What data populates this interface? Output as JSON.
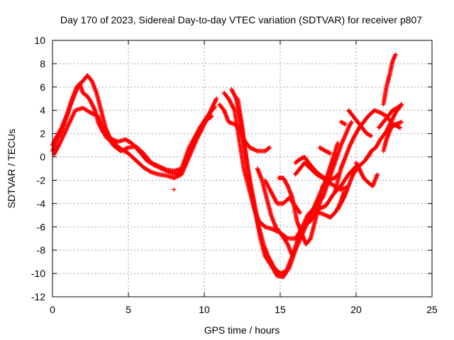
{
  "chart_data": {
    "type": "scatter",
    "title": "Day 170 of 2023, Sidereal Day-to-day VTEC variation (SDTVAR) for receiver p807",
    "xlabel": "GPS time / hours",
    "ylabel": "SDTVAR / TECUs",
    "xlim": [
      0,
      25
    ],
    "ylim": [
      -12,
      10
    ],
    "xticks": [
      "0",
      "5",
      "10",
      "15",
      "20",
      "25"
    ],
    "yticks": [
      "-12",
      "-10",
      "-8",
      "-6",
      "-4",
      "-2",
      "0",
      "2",
      "4",
      "6",
      "8",
      "10"
    ],
    "grid": true,
    "marker": "+",
    "color": "#ff0000",
    "series": [
      {
        "values": [
          [
            0.0,
            0.5
          ],
          [
            0.3,
            1.5
          ],
          [
            0.6,
            2.2
          ],
          [
            0.9,
            3.3
          ],
          [
            1.2,
            4.5
          ],
          [
            1.5,
            5.5
          ],
          [
            1.8,
            6.3
          ],
          [
            2.0,
            5.5
          ],
          [
            2.3,
            5.2
          ],
          [
            2.5,
            4.8
          ],
          [
            2.8,
            4.0
          ],
          [
            3.0,
            3.0
          ],
          [
            3.3,
            2.2
          ],
          [
            3.6,
            1.6
          ],
          [
            4.0,
            1.2
          ],
          [
            4.5,
            0.7
          ],
          [
            5.0,
            0.3
          ],
          [
            5.5,
            -0.3
          ],
          [
            6.0,
            -0.9
          ],
          [
            6.5,
            -1.3
          ],
          [
            7.0,
            -1.5
          ],
          [
            7.5,
            -1.6
          ],
          [
            8.0,
            -1.8
          ],
          [
            8.5,
            -1.5
          ],
          [
            9.0,
            0.0
          ],
          [
            9.5,
            1.5
          ],
          [
            10.0,
            2.8
          ],
          [
            10.5,
            4.2
          ],
          [
            10.8,
            5.0
          ]
        ]
      },
      {
        "values": [
          [
            0.0,
            1.0
          ],
          [
            0.3,
            1.8
          ],
          [
            0.6,
            2.5
          ],
          [
            1.0,
            3.8
          ],
          [
            1.3,
            5.0
          ],
          [
            1.6,
            6.0
          ],
          [
            2.0,
            6.5
          ],
          [
            2.3,
            7.0
          ],
          [
            2.6,
            6.5
          ],
          [
            2.9,
            5.5
          ],
          [
            3.2,
            4.0
          ],
          [
            3.5,
            2.5
          ],
          [
            3.8,
            1.6
          ],
          [
            4.3,
            1.3
          ],
          [
            4.8,
            1.5
          ],
          [
            5.2,
            1.2
          ],
          [
            5.7,
            0.5
          ],
          [
            6.2,
            -0.3
          ],
          [
            6.7,
            -0.7
          ],
          [
            7.2,
            -1.0
          ],
          [
            7.7,
            -1.3
          ],
          [
            8.2,
            -1.5
          ],
          [
            8.7,
            -0.8
          ],
          [
            9.2,
            1.0
          ],
          [
            9.7,
            2.5
          ],
          [
            10.2,
            3.5
          ],
          [
            10.7,
            4.3
          ]
        ]
      },
      {
        "values": [
          [
            0.1,
            0.2
          ],
          [
            0.5,
            1.2
          ],
          [
            1.0,
            2.6
          ],
          [
            1.5,
            4.0
          ],
          [
            2.0,
            4.2
          ],
          [
            2.5,
            3.8
          ],
          [
            3.0,
            3.5
          ],
          [
            3.5,
            2.0
          ],
          [
            4.0,
            1.0
          ],
          [
            4.5,
            0.5
          ],
          [
            5.0,
            0.8
          ],
          [
            5.5,
            0.9
          ],
          [
            6.0,
            0.3
          ],
          [
            6.5,
            -0.5
          ],
          [
            7.0,
            -0.8
          ],
          [
            7.5,
            -1.1
          ],
          [
            8.0,
            -1.2
          ],
          [
            8.5,
            -1.0
          ],
          [
            9.0,
            0.8
          ],
          [
            9.5,
            2.0
          ],
          [
            10.0,
            3.0
          ],
          [
            10.5,
            3.5
          ]
        ]
      },
      {
        "values": [
          [
            8.0,
            -2.8
          ]
        ]
      },
      {
        "values": [
          [
            11.0,
            4.5
          ],
          [
            11.3,
            4.0
          ],
          [
            11.6,
            3.0
          ],
          [
            12.0,
            2.8
          ],
          [
            12.3,
            2.5
          ],
          [
            12.6,
            1.5
          ],
          [
            13.0,
            0.8
          ],
          [
            13.5,
            0.5
          ],
          [
            14.0,
            0.5
          ],
          [
            14.3,
            0.8
          ]
        ]
      },
      {
        "values": [
          [
            11.3,
            5.5
          ],
          [
            11.6,
            5.0
          ],
          [
            12.0,
            4.0
          ],
          [
            12.3,
            1.5
          ],
          [
            12.6,
            -1.0
          ],
          [
            13.0,
            -3.0
          ],
          [
            13.3,
            -4.5
          ],
          [
            13.6,
            -5.5
          ],
          [
            14.0,
            -6.0
          ],
          [
            14.5,
            -6.2
          ],
          [
            15.0,
            -6.5
          ],
          [
            15.5,
            -7.5
          ],
          [
            15.8,
            -8.5
          ]
        ]
      },
      {
        "values": [
          [
            11.8,
            5.8
          ],
          [
            12.1,
            5.0
          ],
          [
            12.4,
            3.0
          ],
          [
            12.7,
            0.5
          ],
          [
            13.0,
            -2.0
          ],
          [
            13.3,
            -4.0
          ],
          [
            13.6,
            -6.0
          ],
          [
            13.9,
            -7.5
          ],
          [
            14.2,
            -8.5
          ],
          [
            14.6,
            -9.5
          ],
          [
            15.0,
            -10.0
          ],
          [
            15.4,
            -9.8
          ],
          [
            15.8,
            -8.5
          ],
          [
            16.3,
            -6.5
          ],
          [
            16.8,
            -5.0
          ],
          [
            17.3,
            -4.3
          ],
          [
            17.8,
            -3.5
          ],
          [
            18.2,
            -2.0
          ],
          [
            18.6,
            -0.5
          ],
          [
            19.0,
            1.0
          ],
          [
            19.5,
            2.5
          ],
          [
            19.7,
            3.0
          ]
        ]
      },
      {
        "values": [
          [
            12.2,
            5.0
          ],
          [
            12.5,
            2.5
          ],
          [
            12.8,
            -0.5
          ],
          [
            13.1,
            -3.0
          ],
          [
            13.4,
            -5.0
          ],
          [
            13.7,
            -7.0
          ],
          [
            14.0,
            -8.5
          ],
          [
            14.4,
            -9.3
          ],
          [
            14.8,
            -10.2
          ],
          [
            15.2,
            -10.3
          ],
          [
            15.6,
            -9.5
          ],
          [
            16.0,
            -8.0
          ],
          [
            16.5,
            -6.5
          ],
          [
            17.0,
            -5.0
          ],
          [
            17.5,
            -3.5
          ],
          [
            18.0,
            -2.0
          ],
          [
            18.5,
            0.0
          ],
          [
            18.8,
            1.2
          ]
        ]
      },
      {
        "values": [
          [
            13.5,
            -1.0
          ],
          [
            13.8,
            -2.0
          ],
          [
            14.1,
            -3.5
          ],
          [
            14.4,
            -5.0
          ],
          [
            14.7,
            -6.0
          ],
          [
            15.0,
            -6.5
          ],
          [
            15.5,
            -7.0
          ],
          [
            16.0,
            -7.0
          ],
          [
            16.5,
            -6.0
          ],
          [
            17.0,
            -5.5
          ],
          [
            17.5,
            -4.5
          ],
          [
            18.0,
            -4.2
          ],
          [
            18.5,
            -3.2
          ],
          [
            19.0,
            -2.5
          ],
          [
            19.5,
            -1.5
          ],
          [
            20.0,
            -0.8
          ]
        ]
      },
      {
        "values": [
          [
            14.0,
            -2.0
          ],
          [
            14.4,
            -3.0
          ],
          [
            14.8,
            -4.0
          ],
          [
            15.2,
            -4.0
          ],
          [
            15.6,
            -3.5
          ],
          [
            16.0,
            -4.2
          ],
          [
            16.3,
            -4.8
          ]
        ]
      },
      {
        "values": [
          [
            14.9,
            -1.8
          ],
          [
            15.2,
            -1.8
          ],
          [
            15.5,
            -2.5
          ],
          [
            15.8,
            -3.5
          ],
          [
            16.1,
            -5.5
          ],
          [
            16.4,
            -6.5
          ],
          [
            16.7,
            -7.5
          ],
          [
            17.0,
            -7.0
          ],
          [
            17.3,
            -5.5
          ],
          [
            17.6,
            -4.0
          ],
          [
            17.8,
            -2.5
          ]
        ]
      },
      {
        "values": [
          [
            16.0,
            -1.5
          ],
          [
            16.3,
            -1.0
          ],
          [
            16.6,
            -0.5
          ],
          [
            17.0,
            -1.0
          ],
          [
            17.4,
            -1.5
          ],
          [
            17.8,
            -1.8
          ],
          [
            18.2,
            -2.2
          ],
          [
            18.6,
            -2.5
          ],
          [
            19.0,
            -2.8
          ],
          [
            19.4,
            -2.6
          ]
        ]
      },
      {
        "values": [
          [
            16.0,
            -0.5
          ],
          [
            16.3,
            -0.2
          ],
          [
            16.6,
            0.0
          ],
          [
            17.0,
            -0.7
          ],
          [
            17.4,
            -1.3
          ],
          [
            17.8,
            -1.7
          ],
          [
            18.2,
            -2.0
          ],
          [
            18.6,
            -1.8
          ],
          [
            18.8,
            -1.5
          ]
        ]
      },
      {
        "values": [
          [
            17.3,
            -4.5
          ],
          [
            17.6,
            -4.8
          ],
          [
            18.0,
            -5.0
          ],
          [
            18.3,
            -5.2
          ],
          [
            18.6,
            -4.8
          ],
          [
            18.9,
            -4.2
          ],
          [
            19.2,
            -3.5
          ],
          [
            19.5,
            -2.5
          ],
          [
            19.8,
            -1.5
          ],
          [
            20.2,
            -0.8
          ],
          [
            20.6,
            -0.3
          ],
          [
            21.0,
            0.5
          ]
        ]
      },
      {
        "values": [
          [
            17.6,
            0.8
          ],
          [
            18.0,
            0.5
          ],
          [
            18.3,
            0.3
          ]
        ]
      },
      {
        "values": [
          [
            18.6,
            -3.0
          ],
          [
            18.8,
            -2.0
          ],
          [
            19.0,
            -1.0
          ],
          [
            19.3,
            0.0
          ],
          [
            19.6,
            1.0
          ],
          [
            19.9,
            1.8
          ],
          [
            20.2,
            2.5
          ],
          [
            20.5,
            3.0
          ],
          [
            20.8,
            3.5
          ],
          [
            21.2,
            4.0
          ],
          [
            21.6,
            3.8
          ],
          [
            22.0,
            3.5
          ],
          [
            22.3,
            3.0
          ]
        ]
      },
      {
        "values": [
          [
            18.8,
            -4.5
          ],
          [
            19.0,
            -3.8
          ],
          [
            19.2,
            -3.0
          ]
        ]
      },
      {
        "values": [
          [
            19.0,
            3.0
          ],
          [
            19.3,
            2.8
          ]
        ]
      },
      {
        "values": [
          [
            19.5,
            4.0
          ],
          [
            19.8,
            3.5
          ],
          [
            20.1,
            3.0
          ],
          [
            20.4,
            2.5
          ],
          [
            20.7,
            2.0
          ],
          [
            21.0,
            1.8
          ]
        ]
      },
      {
        "values": [
          [
            20.0,
            -0.5
          ],
          [
            20.2,
            -1.0
          ],
          [
            20.5,
            -1.8
          ],
          [
            20.8,
            -2.2
          ],
          [
            21.1,
            -2.5
          ],
          [
            21.4,
            -1.5
          ]
        ]
      },
      {
        "values": [
          [
            20.8,
            0.0
          ],
          [
            21.0,
            0.5
          ],
          [
            21.3,
            0.8
          ],
          [
            21.6,
            1.5
          ],
          [
            22.0,
            2.2
          ],
          [
            22.3,
            3.0
          ],
          [
            22.6,
            3.8
          ],
          [
            23.0,
            4.5
          ]
        ]
      },
      {
        "values": [
          [
            21.8,
            0.5
          ],
          [
            22.0,
            1.5
          ],
          [
            22.3,
            2.5
          ],
          [
            22.6,
            2.8
          ],
          [
            23.0,
            3.0
          ]
        ]
      },
      {
        "values": [
          [
            21.5,
            2.5
          ],
          [
            21.8,
            3.0
          ],
          [
            22.1,
            3.5
          ],
          [
            22.4,
            4.0
          ],
          [
            22.7,
            4.2
          ],
          [
            23.0,
            4.5
          ]
        ]
      },
      {
        "values": [
          [
            21.8,
            4.5
          ],
          [
            22.0,
            6.0
          ],
          [
            22.2,
            7.0
          ],
          [
            22.4,
            8.2
          ],
          [
            22.6,
            8.8
          ]
        ]
      },
      {
        "values": [
          [
            22.2,
            2.5
          ],
          [
            22.5,
            2.8
          ],
          [
            22.9,
            2.5
          ]
        ]
      }
    ]
  }
}
